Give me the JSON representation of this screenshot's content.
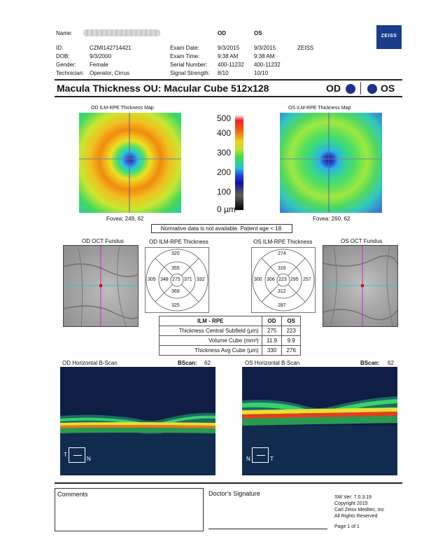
{
  "patient": {
    "name_label": "Name:",
    "id_label": "ID:",
    "id": "CZMI142714421",
    "dob_label": "DOB:",
    "dob": "9/3/2000",
    "gender_label": "Gender:",
    "gender": "Female",
    "tech_label": "Technician:",
    "tech": "Operator, Cirrus"
  },
  "exam": {
    "od": "OD",
    "os": "OS",
    "date_label": "Exam Date:",
    "date_od": "9/3/2015",
    "date_os": "9/3/2015",
    "time_label": "Exam Time:",
    "time_od": "9:38 AM",
    "time_os": "9:38 AM",
    "serial_label": "Serial Number:",
    "serial_od": "400-11232",
    "serial_os": "400-11232",
    "signal_label": "Signal Strength:",
    "signal_od": "8/10",
    "signal_os": "10/10",
    "brand": "ZEISS"
  },
  "logo": "ZEISS",
  "title": "Macula Thickness OU: Macular Cube 512x128",
  "eye_od": "OD",
  "eye_os": "OS",
  "maps": {
    "od_title": "OD ILM-RPE Thickness Map",
    "os_title": "OS ILM-RPE Thickness Map",
    "od_fovea": "Fovea: 249, 62",
    "os_fovea": "Fovea: 260, 62",
    "scale": [
      "500",
      "400",
      "300",
      "200",
      "100",
      "0 µm"
    ],
    "normative_note": "Normative data is not available. Patient age < 18."
  },
  "etdrs": {
    "od_fundus_title": "OD OCT Fundus",
    "os_fundus_title": "OS OCT Fundus",
    "od_title": "OD ILM-RPE Thickness",
    "os_title": "OS ILM-RPE Thickness",
    "od": {
      "sup_outer": "320",
      "sup_inner": "355",
      "temp_outer": "305",
      "temp_inner": "348",
      "center": "275",
      "nasal_inner": "371",
      "nasal_outer": "332",
      "inf_inner": "369",
      "inf_outer": "325"
    },
    "os": {
      "sup_outer": "274",
      "sup_inner": "316",
      "temp_outer": "300",
      "temp_inner": "306",
      "center": "223",
      "nasal_inner": "295",
      "nasal_outer": "257",
      "inf_inner": "312",
      "inf_outer": "287"
    }
  },
  "table": {
    "header": [
      "ILM - RPE",
      "OD",
      "OS"
    ],
    "rows": [
      [
        "Thickness Central Subfield (µm)",
        "275",
        "223"
      ],
      [
        "Volume Cube (mm³)",
        "11.9",
        "9.9"
      ],
      [
        "Thickness Avg Cube (µm)",
        "330",
        "276"
      ]
    ]
  },
  "bscan": {
    "od_title": "OD Horizontal B-Scan",
    "os_title": "OS Horizontal B-Scan",
    "bscan_label": "BScan:",
    "od_value": "62",
    "os_value": "62",
    "od_left": "T",
    "od_right": "N",
    "os_left": "N",
    "os_right": "T"
  },
  "footer": {
    "comments": "Comments",
    "signature": "Doctor's Signature",
    "sw": "SW Ver: 7.0.3.19",
    "copyright": "Copyright 2015",
    "company": "Carl Zeiss Meditec, Inc",
    "rights": "All Rights Reserved",
    "page": "Page 1 of 1"
  },
  "colors": {
    "od_dot": "#1f2f8a",
    "os_dot": "#1f2f8a",
    "zeiss_blue": "#1a3c8c"
  }
}
